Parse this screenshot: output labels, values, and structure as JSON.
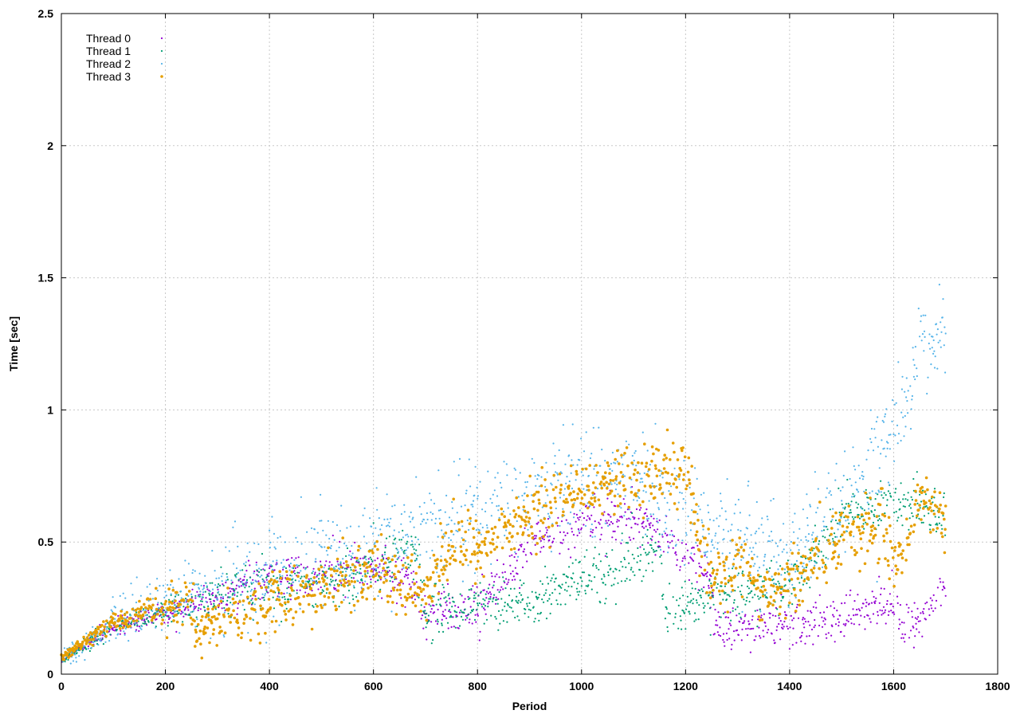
{
  "chart_data": {
    "type": "scatter",
    "xlabel": "Period",
    "ylabel": "Time [sec]",
    "xlim": [
      0,
      1800
    ],
    "ylim": [
      0,
      2.5
    ],
    "x_ticks": [
      0,
      200,
      400,
      600,
      800,
      1000,
      1200,
      1400,
      1600,
      1800
    ],
    "y_ticks": [
      0,
      0.5,
      1,
      1.5,
      2,
      2.5
    ],
    "grid": true,
    "legend_position": "top-left",
    "x_range": [
      0,
      1700
    ],
    "series": [
      {
        "name": "Thread 0",
        "color": "#9400d3",
        "trend": [
          [
            0,
            0.05
          ],
          [
            100,
            0.18
          ],
          [
            200,
            0.23
          ],
          [
            300,
            0.3
          ],
          [
            400,
            0.36
          ],
          [
            500,
            0.38
          ],
          [
            600,
            0.4
          ],
          [
            680,
            0.35
          ],
          [
            700,
            0.22
          ],
          [
            800,
            0.25
          ],
          [
            900,
            0.5
          ],
          [
            1000,
            0.55
          ],
          [
            1100,
            0.6
          ],
          [
            1240,
            0.4
          ],
          [
            1260,
            0.16
          ],
          [
            1340,
            0.2
          ],
          [
            1440,
            0.19
          ],
          [
            1540,
            0.24
          ],
          [
            1600,
            0.28
          ],
          [
            1620,
            0.16
          ],
          [
            1700,
            0.32
          ]
        ],
        "spread": 0.07
      },
      {
        "name": "Thread 1",
        "color": "#009e73",
        "trend": [
          [
            0,
            0.05
          ],
          [
            100,
            0.18
          ],
          [
            200,
            0.24
          ],
          [
            300,
            0.29
          ],
          [
            400,
            0.33
          ],
          [
            500,
            0.35
          ],
          [
            600,
            0.4
          ],
          [
            680,
            0.48
          ],
          [
            700,
            0.22
          ],
          [
            780,
            0.25
          ],
          [
            900,
            0.28
          ],
          [
            1000,
            0.36
          ],
          [
            1100,
            0.43
          ],
          [
            1150,
            0.48
          ],
          [
            1160,
            0.22
          ],
          [
            1250,
            0.3
          ],
          [
            1400,
            0.33
          ],
          [
            1500,
            0.6
          ],
          [
            1600,
            0.65
          ],
          [
            1700,
            0.6
          ]
        ],
        "spread": 0.08
      },
      {
        "name": "Thread 2",
        "color": "#56b4e9",
        "trend": [
          [
            0,
            0.06
          ],
          [
            100,
            0.19
          ],
          [
            200,
            0.27
          ],
          [
            300,
            0.32
          ],
          [
            400,
            0.4
          ],
          [
            500,
            0.44
          ],
          [
            600,
            0.46
          ],
          [
            700,
            0.58
          ],
          [
            800,
            0.6
          ],
          [
            900,
            0.68
          ],
          [
            1000,
            0.72
          ],
          [
            1100,
            0.72
          ],
          [
            1200,
            0.62
          ],
          [
            1300,
            0.5
          ],
          [
            1400,
            0.46
          ],
          [
            1500,
            0.62
          ],
          [
            1600,
            0.9
          ],
          [
            1650,
            1.2
          ],
          [
            1700,
            1.25
          ]
        ],
        "spread": 0.16
      },
      {
        "name": "Thread 3",
        "color": "#e69f00",
        "trend": [
          [
            0,
            0.06
          ],
          [
            100,
            0.2
          ],
          [
            200,
            0.24
          ],
          [
            250,
            0.29
          ],
          [
            260,
            0.15
          ],
          [
            300,
            0.21
          ],
          [
            400,
            0.27
          ],
          [
            500,
            0.34
          ],
          [
            600,
            0.4
          ],
          [
            700,
            0.3
          ],
          [
            750,
            0.5
          ],
          [
            800,
            0.48
          ],
          [
            900,
            0.6
          ],
          [
            1000,
            0.7
          ],
          [
            1100,
            0.75
          ],
          [
            1200,
            0.75
          ],
          [
            1250,
            0.33
          ],
          [
            1300,
            0.45
          ],
          [
            1350,
            0.3
          ],
          [
            1450,
            0.42
          ],
          [
            1500,
            0.52
          ],
          [
            1580,
            0.56
          ],
          [
            1600,
            0.38
          ],
          [
            1650,
            0.65
          ],
          [
            1700,
            0.58
          ]
        ],
        "spread": 0.1
      }
    ]
  }
}
